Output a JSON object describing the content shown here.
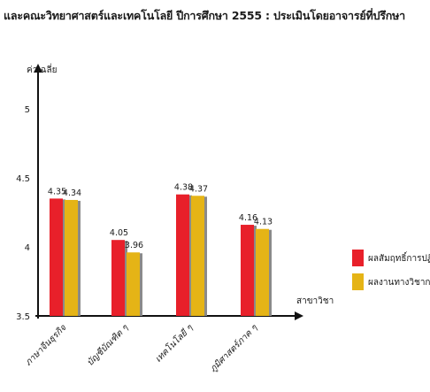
{
  "chart_data": {
    "type": "bar",
    "title": "และคณะวิทยาศาสตร์และเทคโนโลยี ปีการศึกษา  2555  : ประเมินโดยอาจารย์ที่ปรึกษา",
    "ylabel": "ค่าเฉลี่ย",
    "xlabel": "สาขาวิชา",
    "categories": [
      "ภาษาจีนธุรกิจ",
      "บัญชีบัณฑิต ๆ",
      "เทคโนโลยี ๆ",
      "ภูมิศาสตร์ภาค ๆ"
    ],
    "ylim": [
      3.5,
      5
    ],
    "yticks": [
      "3.5",
      "4",
      "4.5",
      "5"
    ],
    "ytick_values": [
      3.5,
      4,
      4.5,
      5
    ],
    "legend_position": "right",
    "grid": false,
    "series": [
      {
        "name": "ผลสัมฤทธิ์การปฏิบัติ",
        "color": "#e8202a",
        "values": [
          4.35,
          4.05,
          4.38,
          4.16
        ],
        "labels": [
          "4.35",
          "4.05",
          "4.38",
          "4.16"
        ]
      },
      {
        "name": "ผลงานทางวิชาการ",
        "color": "#e5b416",
        "values": [
          4.34,
          3.96,
          4.37,
          4.13
        ],
        "labels": [
          "4.34",
          "3.96",
          "4.37",
          "4.13"
        ]
      }
    ]
  }
}
